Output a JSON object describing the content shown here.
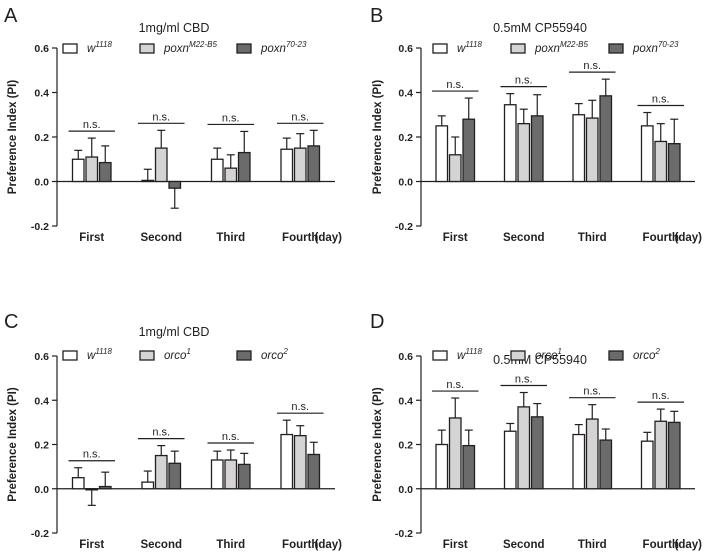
{
  "chart_data": [
    {
      "panel": "A",
      "type": "bar",
      "title": "1mg/ml CBD",
      "ylabel": "Preference Index (PI)",
      "ylim": [
        -0.2,
        0.6
      ],
      "yticks": [
        "-0.2",
        "0.0",
        "0.2",
        "0.4",
        "0.6"
      ],
      "categories": [
        "First",
        "Second",
        "Third",
        "Fourth"
      ],
      "x_unit": "(day)",
      "series": [
        {
          "name": "w",
          "sup": "1118",
          "fill": "#ffffff",
          "values": [
            0.1,
            0.005,
            0.1,
            0.145
          ],
          "errors": [
            0.04,
            0.05,
            0.05,
            0.05
          ]
        },
        {
          "name": "poxn",
          "sup": "M22-B5",
          "fill": "#d4d4d4",
          "values": [
            0.11,
            0.15,
            0.06,
            0.15
          ],
          "errors": [
            0.085,
            0.08,
            0.06,
            0.065
          ]
        },
        {
          "name": "poxn",
          "sup": "70-23",
          "fill": "#6b6b6b",
          "values": [
            0.085,
            -0.03,
            0.13,
            0.16
          ],
          "errors": [
            0.075,
            0.09,
            0.095,
            0.07
          ]
        }
      ],
      "significance": [
        "n.s.",
        "n.s.",
        "n.s.",
        "n.s."
      ]
    },
    {
      "panel": "B",
      "type": "bar",
      "title": "0.5mM CP55940",
      "ylabel": "Preference Index (PI)",
      "ylim": [
        -0.2,
        0.6
      ],
      "yticks": [
        "-0.2",
        "0.0",
        "0.2",
        "0.4",
        "0.6"
      ],
      "categories": [
        "First",
        "Second",
        "Third",
        "Fourth"
      ],
      "x_unit": "(day)",
      "series": [
        {
          "name": "w",
          "sup": "1118",
          "fill": "#ffffff",
          "values": [
            0.25,
            0.345,
            0.3,
            0.25
          ],
          "errors": [
            0.045,
            0.05,
            0.05,
            0.06
          ]
        },
        {
          "name": "poxn",
          "sup": "M22-B5",
          "fill": "#d4d4d4",
          "values": [
            0.12,
            0.26,
            0.285,
            0.18
          ],
          "errors": [
            0.08,
            0.065,
            0.08,
            0.08
          ]
        },
        {
          "name": "poxn",
          "sup": "70-23",
          "fill": "#6b6b6b",
          "values": [
            0.28,
            0.295,
            0.385,
            0.17
          ],
          "errors": [
            0.095,
            0.095,
            0.075,
            0.11
          ]
        }
      ],
      "significance": [
        "n.s.",
        "n.s.",
        "n.s.",
        "n.s."
      ]
    },
    {
      "panel": "C",
      "type": "bar",
      "title": "1mg/ml CBD",
      "ylabel": "Preference Index (PI)",
      "ylim": [
        -0.2,
        0.6
      ],
      "yticks": [
        "-0.2",
        "0.0",
        "0.2",
        "0.4",
        "0.6"
      ],
      "categories": [
        "First",
        "Second",
        "Third",
        "Fourth"
      ],
      "x_unit": "(day)",
      "series": [
        {
          "name": "w",
          "sup": "1118",
          "fill": "#ffffff",
          "values": [
            0.05,
            0.03,
            0.13,
            0.245
          ],
          "errors": [
            0.045,
            0.05,
            0.04,
            0.065
          ]
        },
        {
          "name": "orco",
          "sup": "1",
          "fill": "#d4d4d4",
          "values": [
            -0.005,
            0.15,
            0.13,
            0.24
          ],
          "errors": [
            0.07,
            0.045,
            0.045,
            0.045
          ]
        },
        {
          "name": "orco",
          "sup": "2",
          "fill": "#6b6b6b",
          "values": [
            0.01,
            0.115,
            0.11,
            0.155
          ],
          "errors": [
            0.065,
            0.055,
            0.05,
            0.055
          ]
        }
      ],
      "significance": [
        "n.s.",
        "n.s.",
        "n.s.",
        "n.s."
      ]
    },
    {
      "panel": "D",
      "type": "bar",
      "title": "0.5mM CP55940",
      "ylabel": "Preference Index (PI)",
      "ylim": [
        -0.2,
        0.6
      ],
      "yticks": [
        "-0.2",
        "0.0",
        "0.2",
        "0.4",
        "0.6"
      ],
      "categories": [
        "First",
        "Second",
        "Third",
        "Fourth"
      ],
      "x_unit": "(day)",
      "series": [
        {
          "name": "w",
          "sup": "1118",
          "fill": "#ffffff",
          "values": [
            0.2,
            0.26,
            0.245,
            0.215
          ],
          "errors": [
            0.065,
            0.035,
            0.045,
            0.04
          ]
        },
        {
          "name": "orco",
          "sup": "1",
          "fill": "#d4d4d4",
          "values": [
            0.32,
            0.37,
            0.315,
            0.305
          ],
          "errors": [
            0.09,
            0.065,
            0.065,
            0.055
          ]
        },
        {
          "name": "orco",
          "sup": "2",
          "fill": "#6b6b6b",
          "values": [
            0.195,
            0.325,
            0.22,
            0.3
          ],
          "errors": [
            0.07,
            0.06,
            0.05,
            0.05
          ]
        }
      ],
      "significance": [
        "n.s.",
        "n.s.",
        "n.s.",
        "n.s."
      ]
    }
  ]
}
